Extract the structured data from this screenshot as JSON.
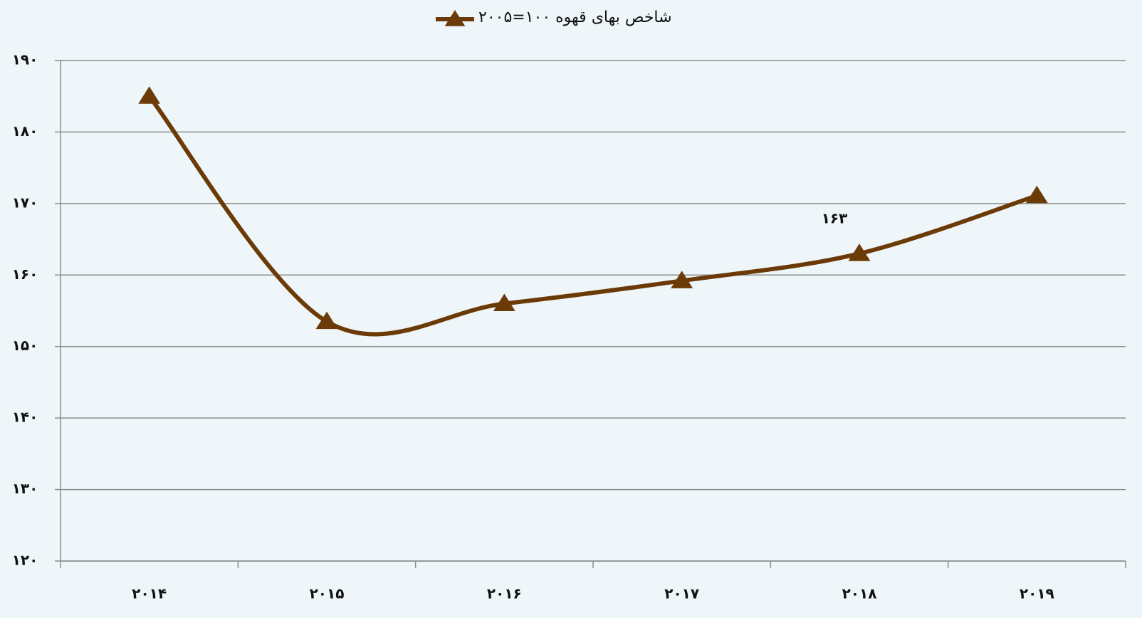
{
  "chart_data": {
    "type": "line",
    "categories": [
      "۲۰۱۴",
      "۲۰۱۵",
      "۲۰۱۶",
      "۲۰۱۷",
      "۲۰۱۸",
      "۲۰۱۹"
    ],
    "series": [
      {
        "name": "شاخص بهای قهوه ۱۰۰=۲۰۰۵",
        "color": "#6b3a07",
        "values": [
          185,
          153.5,
          156,
          159.2,
          163,
          171.1
        ],
        "value_labels": [
          null,
          null,
          null,
          null,
          "۱۶۳",
          null
        ]
      }
    ],
    "ylim": [
      120,
      190
    ],
    "yticks": [
      {
        "value": 120,
        "label": "۱۲۰"
      },
      {
        "value": 130,
        "label": "۱۳۰"
      },
      {
        "value": 140,
        "label": "۱۴۰"
      },
      {
        "value": 150,
        "label": "۱۵۰"
      },
      {
        "value": 160,
        "label": "۱۶۰"
      },
      {
        "value": 170,
        "label": "۱۷۰"
      },
      {
        "value": 180,
        "label": "۱۸۰"
      },
      {
        "value": 190,
        "label": "۱۹۰"
      }
    ],
    "grid": true,
    "smooth": true,
    "legend": "top"
  }
}
